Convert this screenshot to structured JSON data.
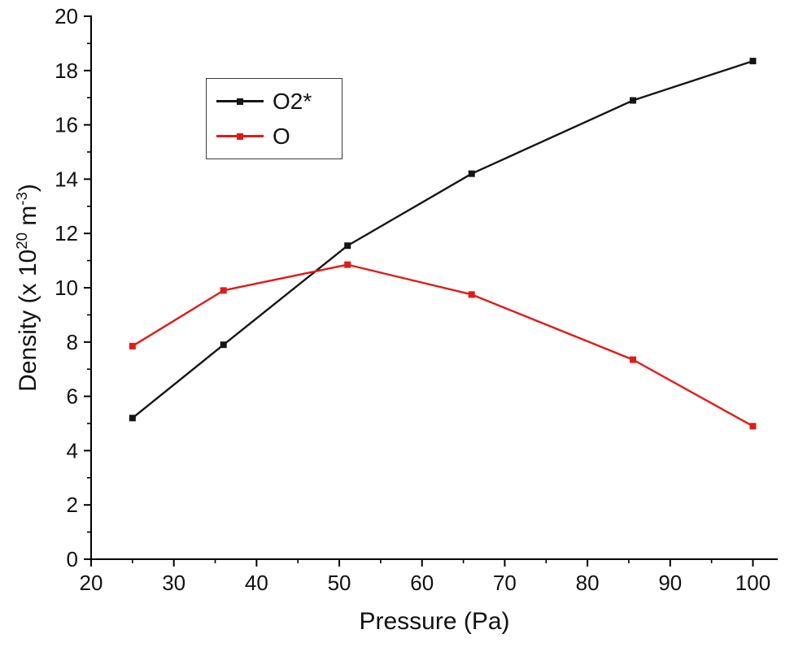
{
  "chart_data": {
    "type": "line",
    "title": "",
    "xlabel": "Pressure (Pa)",
    "ylabel": "Density (x 10^20 m^-3)",
    "ylabel_parts": [
      {
        "text": "Density (x 10",
        "sup": false
      },
      {
        "text": "20",
        "sup": true
      },
      {
        "text": " m",
        "sup": false
      },
      {
        "text": "-3",
        "sup": true
      },
      {
        "text": ")",
        "sup": false
      }
    ],
    "x": [
      25,
      36,
      51,
      66,
      85.5,
      100
    ],
    "series": [
      {
        "name": "O2*",
        "color": "#151515",
        "values": [
          5.2,
          7.9,
          11.55,
          14.2,
          16.9,
          18.35
        ]
      },
      {
        "name": "O",
        "color": "#e01b18",
        "values": [
          7.85,
          9.9,
          10.85,
          9.75,
          7.35,
          4.9
        ]
      }
    ],
    "xlim": [
      20,
      103
    ],
    "ylim": [
      0,
      20
    ],
    "x_ticks": [
      20,
      30,
      40,
      50,
      60,
      70,
      80,
      90,
      100
    ],
    "y_ticks": [
      0,
      2,
      4,
      6,
      8,
      10,
      12,
      14,
      16,
      18,
      20
    ],
    "x_minor_step": 5,
    "y_minor_step": 1,
    "grid": false,
    "legend_position": "top-left",
    "background": "#ffffff",
    "axis_color": "#000000",
    "marker": "square"
  }
}
